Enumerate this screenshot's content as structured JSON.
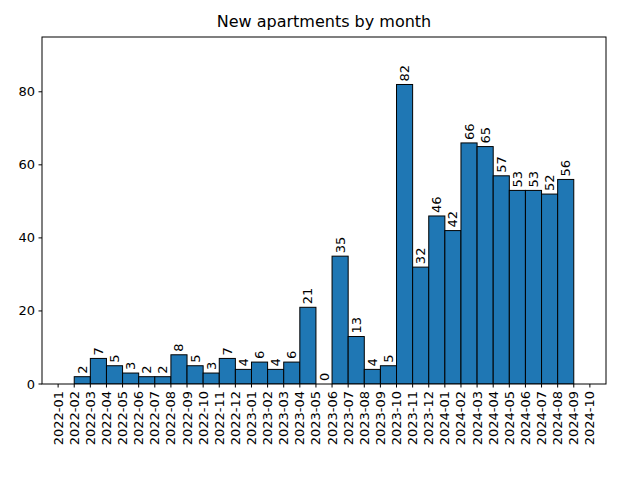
{
  "chart_data": {
    "type": "histogram",
    "title": "New apartments by month",
    "bins": [
      "2022-02",
      "2022-03",
      "2022-04",
      "2022-05",
      "2022-06",
      "2022-07",
      "2022-08",
      "2022-09",
      "2022-10",
      "2022-11",
      "2022-12",
      "2023-01",
      "2023-02",
      "2023-03",
      "2023-04",
      "2023-05",
      "2023-06",
      "2023-07",
      "2023-08",
      "2023-09",
      "2023-10",
      "2023-11",
      "2023-12",
      "2024-01",
      "2024-02",
      "2024-03",
      "2024-04",
      "2024-05",
      "2024-06",
      "2024-07",
      "2024-08",
      "2024-09"
    ],
    "values": [
      2,
      7,
      5,
      3,
      2,
      2,
      8,
      5,
      3,
      7,
      4,
      6,
      4,
      6,
      21,
      0,
      35,
      13,
      4,
      5,
      82,
      32,
      46,
      42,
      66,
      65,
      57,
      53,
      53,
      52,
      56
    ],
    "color": "#1f77b4",
    "xlim": [
      "2021-12",
      "2024-11"
    ],
    "xticks": [
      "2022-01",
      "2022-02",
      "2022-03",
      "2022-04",
      "2022-05",
      "2022-06",
      "2022-07",
      "2022-08",
      "2022-09",
      "2022-10",
      "2022-11",
      "2022-12",
      "2023-01",
      "2023-02",
      "2023-03",
      "2023-04",
      "2023-05",
      "2023-06",
      "2023-07",
      "2023-08",
      "2023-09",
      "2023-10",
      "2023-11",
      "2023-12",
      "2024-01",
      "2024-02",
      "2024-03",
      "2024-04",
      "2024-05",
      "2024-06",
      "2024-07",
      "2024-08",
      "2024-09",
      "2024-10"
    ],
    "ylim": [
      0,
      95
    ],
    "yticks": [
      0,
      20,
      40,
      60,
      80
    ],
    "grid": false,
    "data_labels": true
  }
}
